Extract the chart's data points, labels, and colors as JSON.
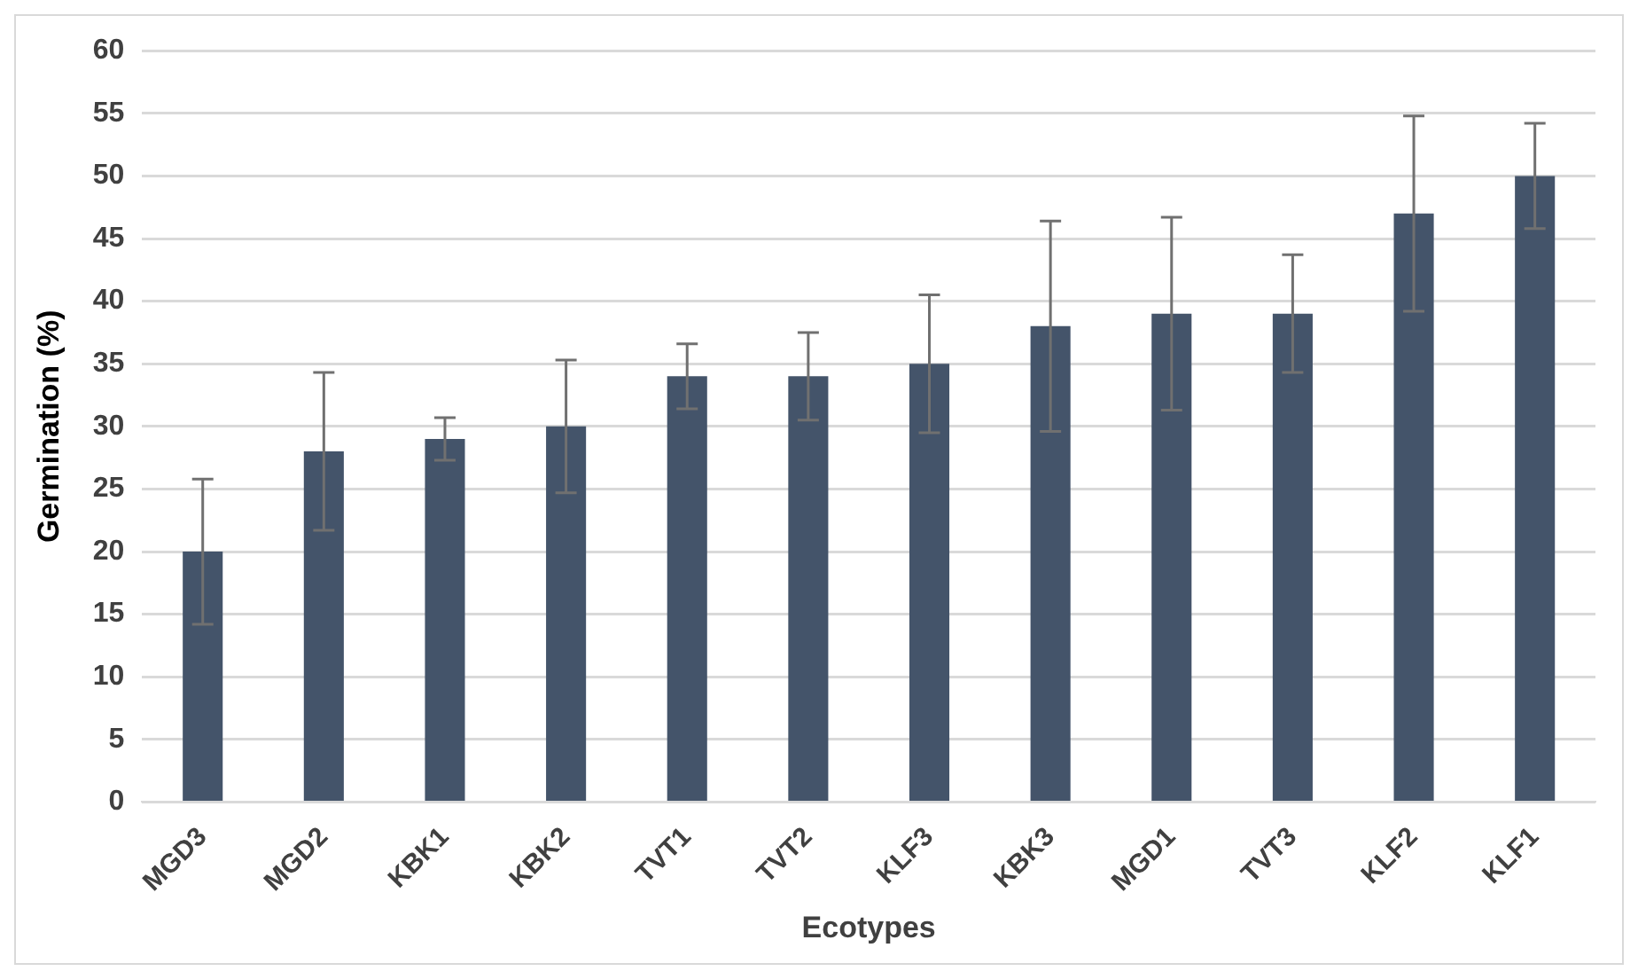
{
  "chart_data": {
    "type": "bar",
    "xlabel": "Ecotypes",
    "ylabel": "Germination (%)",
    "categories": [
      "MGD3",
      "MGD2",
      "KBK1",
      "KBK2",
      "TVT1",
      "TVT2",
      "KLF3",
      "KBK3",
      "MGD1",
      "TVT3",
      "KLF2",
      "KLF1"
    ],
    "values": [
      20,
      28,
      29,
      30,
      34,
      34,
      35,
      38,
      39,
      39,
      47,
      50
    ],
    "errors": [
      5.8,
      6.3,
      1.7,
      5.3,
      2.6,
      3.5,
      5.5,
      8.4,
      7.7,
      4.7,
      7.8,
      4.2
    ],
    "color": "#44546a",
    "ylim": [
      0,
      60
    ],
    "yticks": [
      0,
      5,
      10,
      15,
      20,
      25,
      30,
      35,
      40,
      45,
      50,
      55,
      60
    ],
    "grid": "y",
    "legend": false
  }
}
